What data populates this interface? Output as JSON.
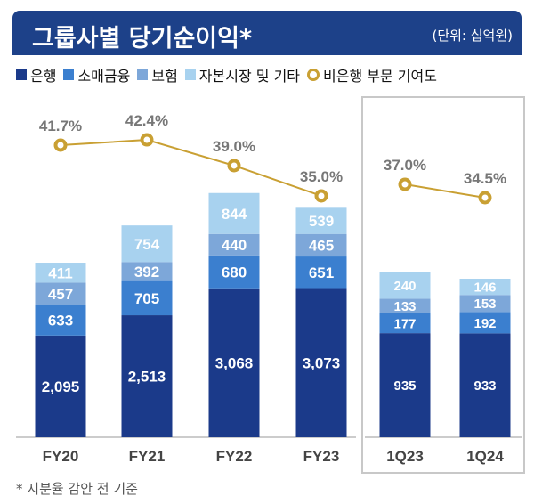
{
  "header": {
    "title": "그룹사별 당기순이익*",
    "unit": "(단위: 십억원)"
  },
  "footnote": "* 지분율 감안 전 기준",
  "chart_data": [
    {
      "type": "bar",
      "stacked": true,
      "categories": [
        "FY20",
        "FY21",
        "FY22",
        "FY23"
      ],
      "series": [
        {
          "name": "은행",
          "color": "#1b3a8a",
          "values": [
            2095,
            2513,
            3068,
            3073
          ]
        },
        {
          "name": "소매금융",
          "color": "#3b7fcf",
          "values": [
            633,
            705,
            680,
            651
          ]
        },
        {
          "name": "보험",
          "color": "#7da7d9",
          "values": [
            457,
            392,
            440,
            465
          ]
        },
        {
          "name": "자본시장 및 기타",
          "color": "#a8d2ef",
          "values": [
            411,
            754,
            844,
            539
          ]
        }
      ],
      "line": {
        "name": "비은행 부문 기여도",
        "color": "#c9a033",
        "values": [
          41.7,
          42.4,
          39.0,
          35.0
        ],
        "labels": [
          "41.7%",
          "42.4%",
          "39.0%",
          "35.0%"
        ]
      }
    },
    {
      "type": "bar",
      "stacked": true,
      "categories": [
        "1Q23",
        "1Q24"
      ],
      "series": [
        {
          "name": "은행",
          "color": "#1b3a8a",
          "values": [
            935,
            933
          ]
        },
        {
          "name": "소매금융",
          "color": "#3b7fcf",
          "values": [
            177,
            192
          ]
        },
        {
          "name": "보험",
          "color": "#7da7d9",
          "values": [
            133,
            153
          ]
        },
        {
          "name": "자본시장 및 기타",
          "color": "#a8d2ef",
          "values": [
            240,
            146
          ]
        }
      ],
      "line": {
        "name": "비은행 부문 기여도",
        "color": "#c9a033",
        "values": [
          37.0,
          34.5
        ],
        "labels": [
          "37.0%",
          "34.5%"
        ]
      }
    }
  ]
}
